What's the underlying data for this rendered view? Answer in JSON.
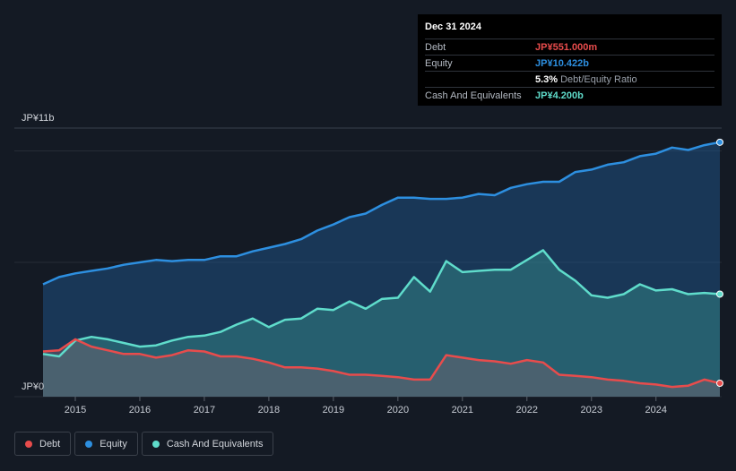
{
  "tooltip": {
    "date": "Dec 31 2024",
    "rows": [
      {
        "label": "Debt",
        "value": "JP¥551.000m",
        "color": "#e84c4c"
      },
      {
        "label": "Equity",
        "value": "JP¥10.422b",
        "color": "#2d8fe0"
      },
      {
        "label": "",
        "value": "5.3%",
        "suffix": "Debt/Equity Ratio",
        "color": "#ffffff"
      },
      {
        "label": "Cash And Equivalents",
        "value": "JP¥4.200b",
        "color": "#5fdccb"
      }
    ]
  },
  "legend": {
    "items": [
      {
        "label": "Debt",
        "color": "#e84c4c"
      },
      {
        "label": "Equity",
        "color": "#2d8fe0"
      },
      {
        "label": "Cash And Equivalents",
        "color": "#5fdccb"
      }
    ]
  },
  "chart_data": {
    "type": "area",
    "title": "",
    "xlabel": "",
    "ylabel": "",
    "ylim": [
      0,
      11
    ],
    "xlim": [
      2014.5,
      2024.99
    ],
    "y_axis_labels": [
      "JP¥11b",
      "JP¥0"
    ],
    "x_ticks": [
      "2015",
      "2016",
      "2017",
      "2018",
      "2019",
      "2020",
      "2021",
      "2022",
      "2023",
      "2024"
    ],
    "grid": true,
    "legend_position": "bottom-left",
    "series": [
      {
        "name": "Equity",
        "color": "#2d8fe0",
        "x": [
          2014.5,
          2014.75,
          2015.0,
          2015.25,
          2015.5,
          2015.75,
          2016.0,
          2016.25,
          2016.5,
          2016.75,
          2017.0,
          2017.25,
          2017.5,
          2017.75,
          2018.0,
          2018.25,
          2018.5,
          2018.75,
          2019.0,
          2019.25,
          2019.5,
          2019.75,
          2020.0,
          2020.25,
          2020.5,
          2020.75,
          2021.0,
          2021.25,
          2021.5,
          2021.75,
          2022.0,
          2022.25,
          2022.5,
          2022.75,
          2023.0,
          2023.25,
          2023.5,
          2023.75,
          2024.0,
          2024.25,
          2024.5,
          2024.75,
          2024.99
        ],
        "values": [
          4.6,
          4.9,
          5.05,
          5.15,
          5.25,
          5.4,
          5.5,
          5.6,
          5.55,
          5.6,
          5.6,
          5.75,
          5.75,
          5.95,
          6.1,
          6.25,
          6.45,
          6.8,
          7.05,
          7.35,
          7.5,
          7.85,
          8.15,
          8.15,
          8.1,
          8.1,
          8.15,
          8.3,
          8.25,
          8.55,
          8.7,
          8.8,
          8.8,
          9.2,
          9.3,
          9.5,
          9.6,
          9.85,
          9.95,
          10.2,
          10.1,
          10.3,
          10.42
        ]
      },
      {
        "name": "Cash And Equivalents",
        "color": "#5fdccb",
        "x": [
          2014.5,
          2014.75,
          2015.0,
          2015.25,
          2015.5,
          2015.75,
          2016.0,
          2016.25,
          2016.5,
          2016.75,
          2017.0,
          2017.25,
          2017.5,
          2017.75,
          2018.0,
          2018.25,
          2018.5,
          2018.75,
          2019.0,
          2019.25,
          2019.5,
          2019.75,
          2020.0,
          2020.25,
          2020.5,
          2020.75,
          2021.0,
          2021.25,
          2021.5,
          2021.75,
          2022.0,
          2022.25,
          2022.5,
          2022.75,
          2023.0,
          2023.25,
          2023.5,
          2023.75,
          2024.0,
          2024.25,
          2024.5,
          2024.75,
          2024.99
        ],
        "values": [
          1.75,
          1.65,
          2.3,
          2.45,
          2.35,
          2.2,
          2.05,
          2.1,
          2.3,
          2.45,
          2.5,
          2.65,
          2.95,
          3.2,
          2.85,
          3.15,
          3.2,
          3.6,
          3.55,
          3.9,
          3.6,
          4.0,
          4.05,
          4.9,
          4.3,
          5.55,
          5.1,
          5.15,
          5.2,
          5.2,
          5.6,
          6.0,
          5.2,
          4.75,
          4.15,
          4.05,
          4.2,
          4.6,
          4.35,
          4.4,
          4.2,
          4.25,
          4.2
        ]
      },
      {
        "name": "Debt",
        "color": "#e84c4c",
        "x": [
          2014.5,
          2014.75,
          2015.0,
          2015.25,
          2015.5,
          2015.75,
          2016.0,
          2016.25,
          2016.5,
          2016.75,
          2017.0,
          2017.25,
          2017.5,
          2017.75,
          2018.0,
          2018.25,
          2018.5,
          2018.75,
          2019.0,
          2019.25,
          2019.5,
          2019.75,
          2020.0,
          2020.25,
          2020.5,
          2020.75,
          2021.0,
          2021.25,
          2021.5,
          2021.75,
          2022.0,
          2022.25,
          2022.5,
          2022.75,
          2023.0,
          2023.25,
          2023.5,
          2023.75,
          2024.0,
          2024.25,
          2024.5,
          2024.75,
          2024.99
        ],
        "values": [
          1.85,
          1.9,
          2.35,
          2.05,
          1.9,
          1.75,
          1.75,
          1.6,
          1.7,
          1.9,
          1.85,
          1.65,
          1.65,
          1.55,
          1.4,
          1.2,
          1.2,
          1.15,
          1.05,
          0.9,
          0.9,
          0.85,
          0.8,
          0.7,
          0.7,
          1.7,
          1.6,
          1.5,
          1.45,
          1.35,
          1.5,
          1.4,
          0.9,
          0.85,
          0.8,
          0.7,
          0.65,
          0.55,
          0.5,
          0.4,
          0.45,
          0.7,
          0.55
        ]
      }
    ]
  }
}
